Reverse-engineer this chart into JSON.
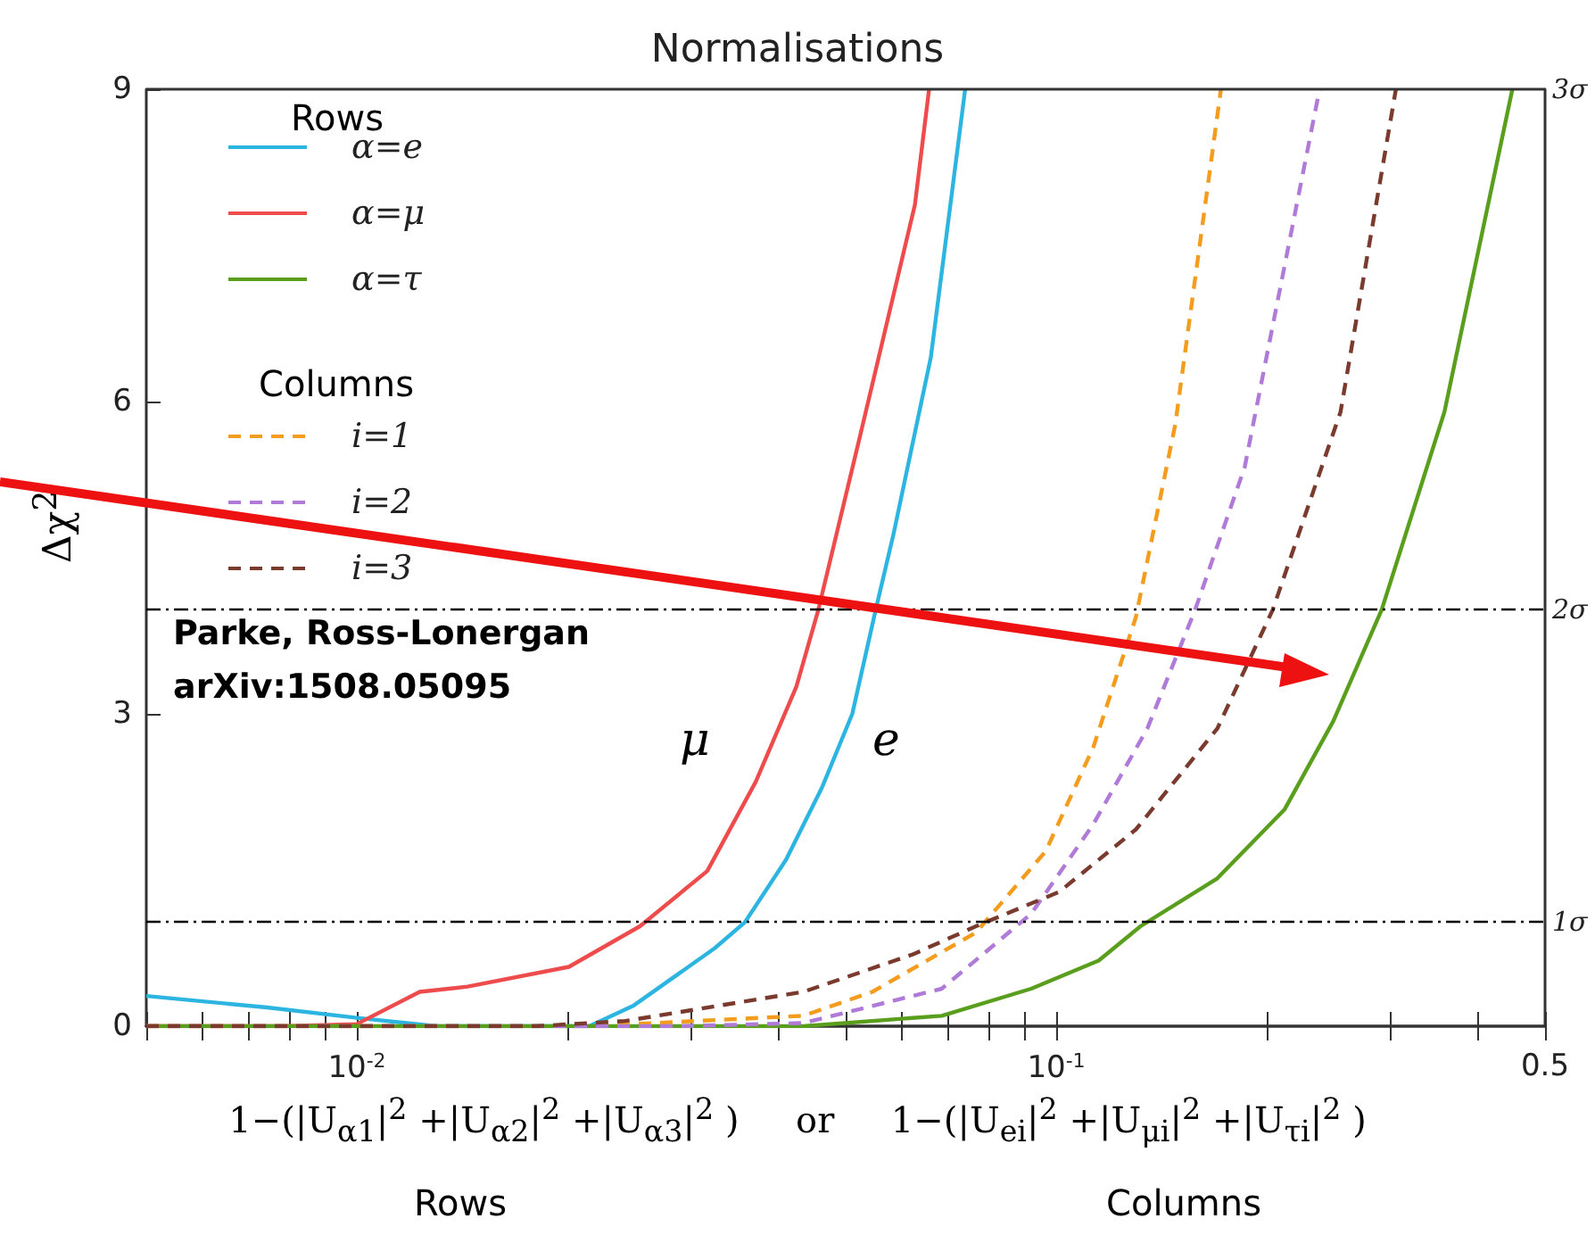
{
  "chart_data": {
    "type": "line",
    "title": "Normalisations",
    "xlabel": "1−(|U$_{α1}$|$^{2}$ +|U$_{α2}$|$^{2}$ +|U$_{α3}$|$^{2}$ )     or     1−(|U$_{ei}$|$^{2}$ +|U$_{μi}$|$^{2}$ +|U$_{τi}$|$^{2}$ )",
    "ylabel": "Δχ$^{2}$",
    "annotations": [
      "Parke, Ross-Lonergan\narXiv:1508.05095",
      "μ",
      "e",
      "Rows",
      "Columns",
      "Rows",
      "Columns"
    ],
    "log": "x",
    "grid": false,
    "legend": "top left",
    "marker": "none",
    "xlim": [
      0.005,
      0.5
    ],
    "xticks": [
      {
        "value": 0.005,
        "label": null
      },
      {
        "value": 0.006,
        "label": null
      },
      {
        "value": 0.007,
        "label": null
      },
      {
        "value": 0.008,
        "label": null
      },
      {
        "value": 0.009,
        "label": null
      },
      {
        "value": 0.01,
        "label": "10$^{-2}$"
      },
      {
        "value": 0.02,
        "label": null
      },
      {
        "value": 0.03,
        "label": null
      },
      {
        "value": 0.04,
        "label": null
      },
      {
        "value": 0.05,
        "label": null
      },
      {
        "value": 0.06,
        "label": null
      },
      {
        "value": 0.07,
        "label": null
      },
      {
        "value": 0.08,
        "label": null
      },
      {
        "value": 0.09,
        "label": null
      },
      {
        "value": 0.1,
        "label": "10$^{-1}$"
      },
      {
        "value": 0.2,
        "label": null
      },
      {
        "value": 0.3,
        "label": null
      },
      {
        "value": 0.4,
        "label": null
      },
      0.5
    ],
    "ylim": [
      0,
      9
    ],
    "yticks": [
      0,
      3,
      6,
      9
    ],
    "ref_lines": [
      {
        "axis": "y",
        "value": 1,
        "label": "1σ",
        "color": "#000000",
        "line_style": "dashed"
      },
      {
        "axis": "y",
        "value": 4,
        "label": "2σ",
        "color": "#000000",
        "line_style": "dashed"
      },
      {
        "axis": "y",
        "value": 9,
        "label": "3σ",
        "color": "#333333",
        "line_style": "solid"
      }
    ],
    "series": [
      {
        "name": "α=e",
        "color": "#2cb5e0",
        "x": [
          0.005,
          0.00744,
          0.01,
          0.013,
          0.0215,
          0.0249,
          0.0288,
          0.0325,
          0.0359,
          0.0411,
          0.0463,
          0.0511,
          0.0552,
          0.0585,
          0.0662,
          0.0741
        ],
        "values": [
          0.29,
          0.18,
          0.08,
          0,
          0,
          0.2,
          0.5,
          0.75,
          1.0,
          1.6,
          2.3,
          3.0,
          4.0,
          4.72,
          6.43,
          9
        ]
      },
      {
        "name": "α=μ",
        "color": "#ee4c4c",
        "x": [
          0.005,
          0.0079,
          0.01,
          0.0123,
          0.0144,
          0.0201,
          0.0254,
          0.0317,
          0.0372,
          0.0425,
          0.0457,
          0.0523,
          0.0628,
          0.0658
        ],
        "values": [
          0,
          0,
          0.02,
          0.33,
          0.38,
          0.57,
          0.96,
          1.49,
          2.35,
          3.26,
          4.0,
          5.64,
          7.89,
          9
        ]
      },
      {
        "name": "α=τ",
        "color": "#5a9e1e",
        "x": [
          0.005,
          0.0435,
          0.0686,
          0.0921,
          0.115,
          0.132,
          0.17,
          0.212,
          0.249,
          0.292,
          0.359,
          0.449
        ],
        "values": [
          0,
          0,
          0.1,
          0.36,
          0.63,
          0.96,
          1.42,
          2.08,
          2.93,
          4.0,
          5.9,
          9
        ]
      },
      {
        "name": "i=1",
        "color": "#f39c1e",
        "line_style": "dashed",
        "x": [
          0.005,
          0.0215,
          0.0435,
          0.0546,
          0.0768,
          0.0966,
          0.113,
          0.13,
          0.148,
          0.172
        ],
        "values": [
          0,
          0,
          0.1,
          0.33,
          0.9,
          1.68,
          2.68,
          3.93,
          5.78,
          9
        ]
      },
      {
        "name": "i=2",
        "color": "#b07ad8",
        "line_style": "dashed",
        "x": [
          0.005,
          0.0288,
          0.0435,
          0.0686,
          0.0921,
          0.113,
          0.135,
          0.158,
          0.186,
          0.238
        ],
        "values": [
          0,
          0,
          0.03,
          0.36,
          1.08,
          1.94,
          2.86,
          4.0,
          5.37,
          9
        ]
      },
      {
        "name": "i=3",
        "color": "#7a3b2e",
        "line_style": "dashed",
        "x": [
          0.005,
          0.018,
          0.0242,
          0.0435,
          0.0624,
          0.0768,
          0.101,
          0.13,
          0.17,
          0.204,
          0.255,
          0.306
        ],
        "values": [
          0,
          0,
          0.05,
          0.33,
          0.69,
          0.96,
          1.29,
          1.89,
          2.86,
          4.0,
          5.9,
          9
        ]
      }
    ]
  }
}
